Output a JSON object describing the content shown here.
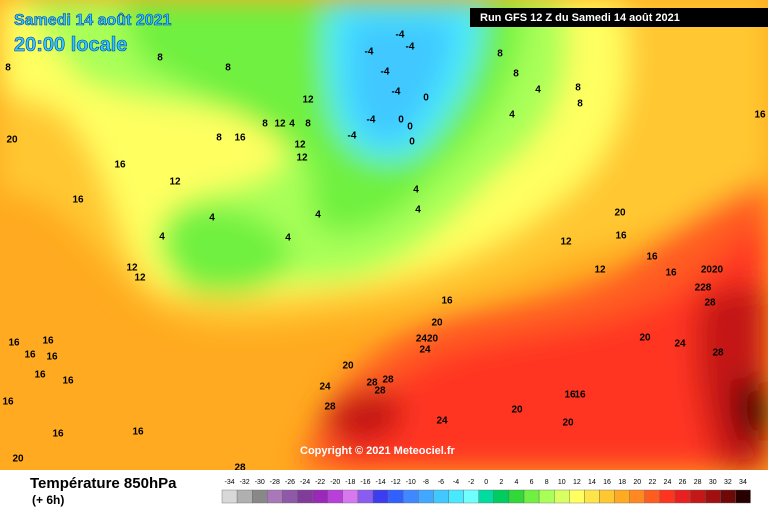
{
  "header": {
    "date": "Samedi 14 août 2021",
    "time": "20:00 locale",
    "run": "Run GFS 12 Z du Samedi 14 août 2021"
  },
  "copyright": "Copyright © 2021 Meteociel.fr",
  "legend": {
    "title": "Température 850hPa",
    "subtitle": "(+ 6h)",
    "ticks": [
      -34,
      -32,
      -30,
      -28,
      -26,
      -24,
      -22,
      -20,
      -18,
      -16,
      -14,
      -12,
      -10,
      -8,
      -6,
      -4,
      -2,
      0,
      2,
      4,
      6,
      8,
      10,
      12,
      14,
      16,
      18,
      20,
      22,
      24,
      26,
      28,
      30,
      32,
      34
    ],
    "colors": [
      "#d8d8d8",
      "#b0b0b0",
      "#888888",
      "#a878b8",
      "#9058a8",
      "#803c98",
      "#9a28b8",
      "#b840d8",
      "#d878f0",
      "#8a5cf0",
      "#3c3cf0",
      "#3060ff",
      "#4088ff",
      "#40a8ff",
      "#40c8ff",
      "#48e8ff",
      "#70ffff",
      "#00dca0",
      "#00cc60",
      "#30d838",
      "#70f040",
      "#a8ff58",
      "#d8ff60",
      "#ffff60",
      "#ffe448",
      "#ffc830",
      "#ffaa20",
      "#ff8820",
      "#ff5c20",
      "#ff3420",
      "#e82020",
      "#c41818",
      "#a01010",
      "#700808",
      "#280000"
    ]
  },
  "labels": [
    "20",
    "16",
    "16",
    "12",
    "4",
    "4",
    "4",
    "4",
    "12",
    "12",
    "16",
    "16",
    "16",
    "16",
    "16",
    "16",
    "16",
    "16",
    "16",
    "20",
    "28",
    "20",
    "24",
    "28",
    "28",
    "28",
    "28",
    "24",
    "20",
    "20",
    "16",
    "16",
    "2420",
    "24",
    "20",
    "16",
    "20",
    "16",
    "12",
    "12",
    "16",
    "16",
    "2020",
    "228",
    "28",
    "20",
    "24",
    "28",
    "12",
    "12",
    "16",
    "8",
    "12",
    "4",
    "8",
    "8",
    "12",
    "-4",
    "-4",
    "-4",
    "-4",
    "-4",
    "-4",
    "-4",
    "0",
    "0",
    "0",
    "0",
    "4",
    "4",
    "4",
    "4",
    "8",
    "8",
    "8",
    "8",
    "8",
    "8",
    "16",
    "8"
  ]
}
